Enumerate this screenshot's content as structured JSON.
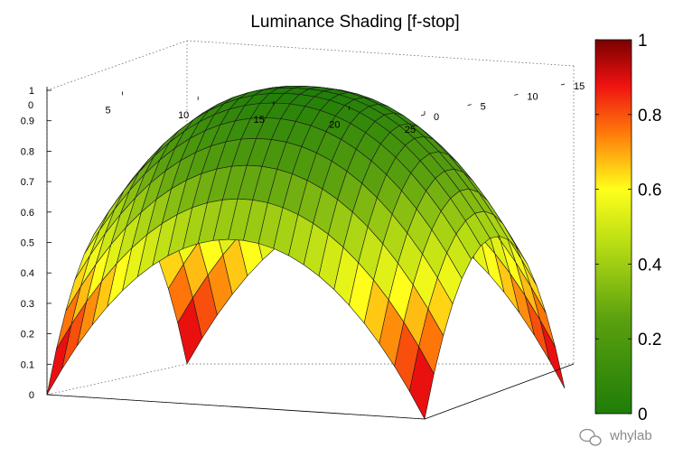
{
  "chart_data": {
    "type": "surface",
    "title": "Luminance Shading [f-stop]",
    "x_ticks": [
      "0",
      "5",
      "10",
      "15",
      "20",
      "25"
    ],
    "y_ticks": [
      "0",
      "5",
      "10",
      "15"
    ],
    "z_ticks": [
      "0",
      "0.1",
      "0.2",
      "0.3",
      "0.4",
      "0.5",
      "0.6",
      "0.7",
      "0.8",
      "0.9",
      "1"
    ],
    "xlim": [
      0,
      25
    ],
    "ylim": [
      0,
      15
    ],
    "zlim": [
      0,
      1
    ],
    "z_reversed": true,
    "grid": true,
    "grid_size": [
      25,
      15
    ],
    "peak_value": 0.0,
    "corner_value": 1.0,
    "colorbar": {
      "ticks": [
        "0",
        "0.2",
        "0.4",
        "0.6",
        "0.8",
        "1"
      ],
      "range": [
        0,
        1
      ],
      "colormap": "green-yellow-red"
    },
    "colormap_stops": [
      {
        "v": 0.0,
        "color": "#1f7d08"
      },
      {
        "v": 0.25,
        "color": "#5aa00f"
      },
      {
        "v": 0.45,
        "color": "#b6dc14"
      },
      {
        "v": 0.6,
        "color": "#ffff1a"
      },
      {
        "v": 0.75,
        "color": "#ff7a0a"
      },
      {
        "v": 0.88,
        "color": "#ee1111"
      },
      {
        "v": 1.0,
        "color": "#7a0000"
      }
    ]
  },
  "watermark": {
    "text": "whylab",
    "icon": "wechat-icon"
  }
}
